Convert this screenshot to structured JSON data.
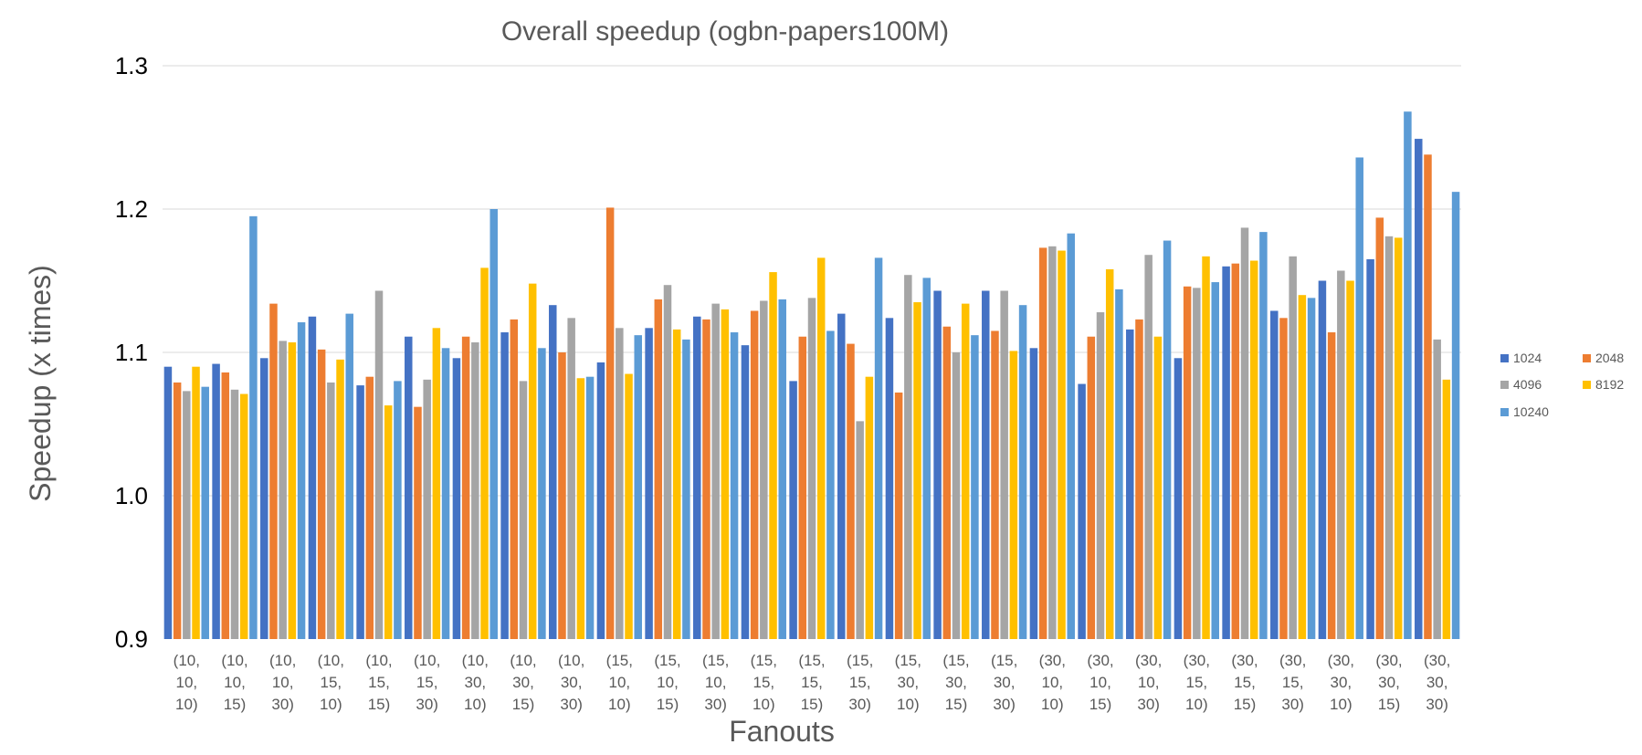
{
  "chart_data": {
    "type": "bar",
    "title": "Overall speedup (ogbn-papers100M)",
    "xlabel": "Fanouts",
    "ylabel": "Speedup (x times)",
    "ylim": [
      0.9,
      1.3
    ],
    "yticks": [
      "0.9",
      "1.0",
      "1.1",
      "1.2",
      "1.3"
    ],
    "grid": true,
    "legend_position": "right",
    "categories": [
      [
        "(10,",
        "10,",
        "10)"
      ],
      [
        "(10,",
        "10,",
        "15)"
      ],
      [
        "(10,",
        "10,",
        "30)"
      ],
      [
        "(10,",
        "15,",
        "10)"
      ],
      [
        "(10,",
        "15,",
        "15)"
      ],
      [
        "(10,",
        "15,",
        "30)"
      ],
      [
        "(10,",
        "30,",
        "10)"
      ],
      [
        "(10,",
        "30,",
        "15)"
      ],
      [
        "(10,",
        "30,",
        "30)"
      ],
      [
        "(15,",
        "10,",
        "10)"
      ],
      [
        "(15,",
        "10,",
        "15)"
      ],
      [
        "(15,",
        "10,",
        "30)"
      ],
      [
        "(15,",
        "15,",
        "10)"
      ],
      [
        "(15,",
        "15,",
        "15)"
      ],
      [
        "(15,",
        "15,",
        "30)"
      ],
      [
        "(15,",
        "30,",
        "10)"
      ],
      [
        "(15,",
        "30,",
        "15)"
      ],
      [
        "(15,",
        "30,",
        "30)"
      ],
      [
        "(30,",
        "10,",
        "10)"
      ],
      [
        "(30,",
        "10,",
        "15)"
      ],
      [
        "(30,",
        "10,",
        "30)"
      ],
      [
        "(30,",
        "15,",
        "10)"
      ],
      [
        "(30,",
        "15,",
        "15)"
      ],
      [
        "(30,",
        "15,",
        "30)"
      ],
      [
        "(30,",
        "30,",
        "10)"
      ],
      [
        "(30,",
        "30,",
        "15)"
      ],
      [
        "(30,",
        "30,",
        "30)"
      ]
    ],
    "series": [
      {
        "name": "1024",
        "color": "#4472C4",
        "values": [
          1.09,
          1.092,
          1.096,
          1.125,
          1.077,
          1.111,
          1.096,
          1.114,
          1.133,
          1.093,
          1.117,
          1.125,
          1.105,
          1.08,
          1.127,
          1.124,
          1.143,
          1.143,
          1.103,
          1.078,
          1.116,
          1.096,
          1.16,
          1.129,
          1.15,
          1.165,
          1.249
        ]
      },
      {
        "name": "2048",
        "color": "#ED7D31",
        "values": [
          1.079,
          1.086,
          1.134,
          1.102,
          1.083,
          1.062,
          1.111,
          1.123,
          1.1,
          1.201,
          1.137,
          1.123,
          1.129,
          1.111,
          1.106,
          1.072,
          1.118,
          1.115,
          1.173,
          1.111,
          1.123,
          1.146,
          1.162,
          1.124,
          1.114,
          1.194,
          1.238
        ]
      },
      {
        "name": "4096",
        "color": "#A5A5A5",
        "values": [
          1.073,
          1.074,
          1.108,
          1.079,
          1.143,
          1.081,
          1.107,
          1.08,
          1.124,
          1.117,
          1.147,
          1.134,
          1.136,
          1.138,
          1.052,
          1.154,
          1.1,
          1.143,
          1.174,
          1.128,
          1.168,
          1.145,
          1.187,
          1.167,
          1.157,
          1.181,
          1.109
        ]
      },
      {
        "name": "8192",
        "color": "#FFC000",
        "values": [
          1.09,
          1.071,
          1.107,
          1.095,
          1.063,
          1.117,
          1.159,
          1.148,
          1.082,
          1.085,
          1.116,
          1.13,
          1.156,
          1.166,
          1.083,
          1.135,
          1.134,
          1.101,
          1.171,
          1.158,
          1.111,
          1.167,
          1.164,
          1.14,
          1.15,
          1.18,
          1.081
        ]
      },
      {
        "name": "10240",
        "color": "#5B9BD5",
        "values": [
          1.076,
          1.195,
          1.121,
          1.127,
          1.08,
          1.103,
          1.2,
          1.103,
          1.083,
          1.112,
          1.109,
          1.114,
          1.137,
          1.115,
          1.166,
          1.152,
          1.112,
          1.133,
          1.183,
          1.144,
          1.178,
          1.149,
          1.184,
          1.138,
          1.236,
          1.268,
          1.212
        ]
      }
    ]
  }
}
